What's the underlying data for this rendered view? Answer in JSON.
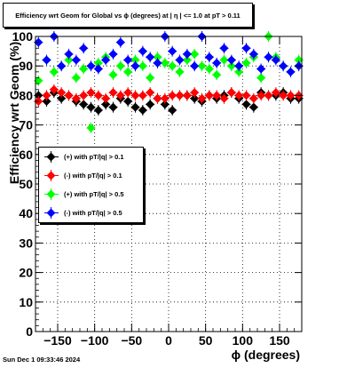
{
  "title": "Efficiency wrt Geom for Global vs ϕ (degrees) at |  η  | <= 1.0 at pT > 0.11",
  "footer_timestamp": "Sun Dec  1 09:33:46 2024",
  "chart_data": {
    "type": "scatter",
    "xlabel": "ϕ (degrees)",
    "ylabel": "Efficiency wrt Geom (%)",
    "xlim": [
      -180,
      180
    ],
    "ylim": [
      0,
      100
    ],
    "x_ticks": [
      -150,
      -100,
      -50,
      0,
      50,
      100,
      150
    ],
    "y_ticks": [
      0,
      10,
      20,
      30,
      40,
      50,
      60,
      70,
      80,
      90,
      100
    ],
    "grid": true,
    "legend_position": "middle-left",
    "series": [
      {
        "name": "(+) with pT/|q| > 0.1",
        "color": "#000000",
        "x": [
          -176,
          -165,
          -155,
          -145,
          -135,
          -125,
          -115,
          -105,
          -95,
          -85,
          -75,
          -65,
          -55,
          -45,
          -35,
          -25,
          -15,
          -5,
          5,
          15,
          25,
          35,
          45,
          55,
          65,
          75,
          85,
          95,
          105,
          115,
          125,
          135,
          145,
          155,
          165,
          176
        ],
        "values": [
          80,
          78,
          81,
          79,
          80,
          78,
          77,
          76,
          75,
          77,
          76,
          79,
          78,
          76,
          75,
          77,
          79,
          77,
          75,
          80,
          80,
          79,
          78,
          80,
          79,
          80,
          81,
          79,
          77,
          76,
          81,
          80,
          80,
          81,
          79,
          79
        ]
      },
      {
        "name": "(-) with pT/|q| > 0.1",
        "color": "#ff0000",
        "x": [
          -176,
          -165,
          -155,
          -145,
          -135,
          -125,
          -115,
          -105,
          -95,
          -85,
          -75,
          -65,
          -55,
          -45,
          -35,
          -25,
          -15,
          -5,
          5,
          15,
          25,
          35,
          45,
          55,
          65,
          75,
          85,
          95,
          105,
          115,
          125,
          135,
          145,
          155,
          165,
          176
        ],
        "values": [
          78,
          80,
          82,
          81,
          80,
          79,
          80,
          81,
          80,
          79,
          81,
          80,
          81,
          80,
          80,
          81,
          79,
          79,
          80,
          80,
          80,
          81,
          79,
          80,
          80,
          79,
          81,
          80,
          80,
          79,
          80,
          80,
          81,
          80,
          80,
          80
        ]
      },
      {
        "name": "(+) with pT/|q| > 0.5",
        "color": "#00ff00",
        "x": [
          -176,
          -165,
          -155,
          -145,
          -135,
          -125,
          -115,
          -105,
          -95,
          -85,
          -75,
          -65,
          -55,
          -45,
          -35,
          -25,
          -15,
          -5,
          5,
          15,
          25,
          35,
          45,
          55,
          65,
          75,
          85,
          95,
          105,
          115,
          125,
          135,
          145,
          155,
          165,
          176
        ],
        "values": [
          85,
          92,
          88,
          90,
          92,
          86,
          89,
          69,
          91,
          93,
          87,
          90,
          88,
          92,
          90,
          86,
          93,
          91,
          90,
          88,
          92,
          94,
          90,
          89,
          87,
          92,
          90,
          88,
          91,
          93,
          86,
          100,
          93,
          90,
          88,
          92
        ]
      },
      {
        "name": "(-) with pT/|q| > 0.5",
        "color": "#0000ff",
        "x": [
          -176,
          -165,
          -155,
          -145,
          -135,
          -125,
          -115,
          -105,
          -95,
          -85,
          -75,
          -65,
          -55,
          -45,
          -35,
          -25,
          -15,
          -5,
          5,
          15,
          25,
          35,
          45,
          55,
          65,
          75,
          85,
          95,
          105,
          115,
          125,
          135,
          145,
          155,
          165,
          176
        ],
        "values": [
          98,
          92,
          100,
          90,
          94,
          92,
          96,
          90,
          89,
          92,
          94,
          98,
          92,
          90,
          95,
          93,
          91,
          100,
          95,
          92,
          94,
          90,
          100,
          93,
          91,
          96,
          92,
          90,
          96,
          94,
          89,
          93,
          92,
          90,
          88,
          90
        ]
      }
    ]
  }
}
